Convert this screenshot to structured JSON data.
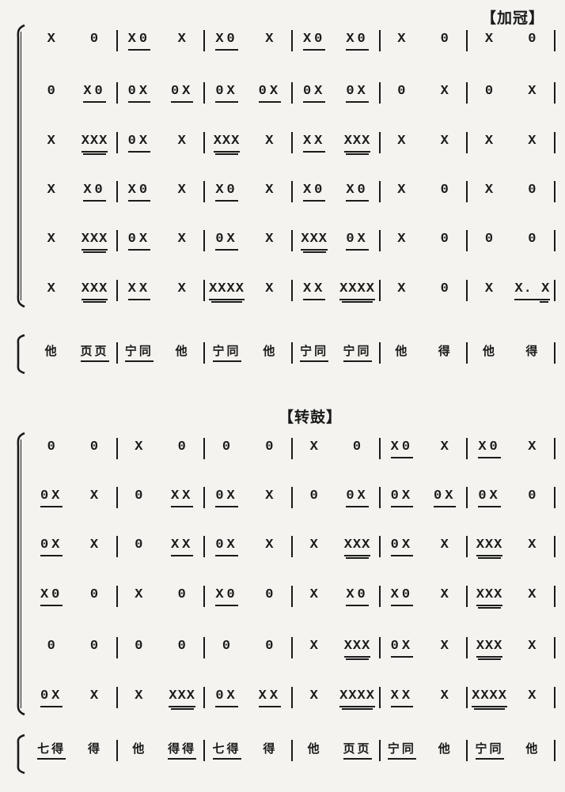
{
  "colors": {
    "ink": "#1a1a1a",
    "background": "#f4f3ef"
  },
  "notation_type": "luogu-jing percussion score (X = strike, 0 = rest; underlines = subdivisions)",
  "systems": [
    {
      "header": {
        "label": "【加冠】"
      },
      "rows": [
        [
          [
            {
              "t": "X",
              "u": 0
            },
            {
              "t": "0",
              "u": 0
            }
          ],
          [
            {
              "t": "X0",
              "u": 1
            },
            {
              "t": "X",
              "u": 0
            }
          ],
          [
            {
              "t": "X0",
              "u": 1
            },
            {
              "t": "X",
              "u": 0
            }
          ],
          [
            {
              "t": "X0",
              "u": 1
            },
            {
              "t": "X0",
              "u": 1
            }
          ],
          [
            {
              "t": "X",
              "u": 0
            },
            {
              "t": "0",
              "u": 0
            }
          ],
          [
            {
              "t": "X",
              "u": 0
            },
            {
              "t": "0",
              "u": 0
            }
          ]
        ],
        [
          [
            {
              "t": "0",
              "u": 0
            },
            {
              "t": "X0",
              "u": 1
            }
          ],
          [
            {
              "t": "0X",
              "u": 1
            },
            {
              "t": "0X",
              "u": 1
            }
          ],
          [
            {
              "t": "0X",
              "u": 1
            },
            {
              "t": "0X",
              "u": 1
            }
          ],
          [
            {
              "t": "0X",
              "u": 1
            },
            {
              "t": "0X",
              "u": 1
            }
          ],
          [
            {
              "t": "0",
              "u": 0
            },
            {
              "t": "X",
              "u": 0
            }
          ],
          [
            {
              "t": "0",
              "u": 0
            },
            {
              "t": "X",
              "u": 0
            }
          ]
        ],
        [
          [
            {
              "t": "X",
              "u": 0
            },
            {
              "t": "XXX",
              "u": 2
            }
          ],
          [
            {
              "t": "0X",
              "u": 1
            },
            {
              "t": "X",
              "u": 0
            }
          ],
          [
            {
              "t": "XXX",
              "u": 2
            },
            {
              "t": "X",
              "u": 0
            }
          ],
          [
            {
              "t": "XX",
              "u": 1
            },
            {
              "t": "XXX",
              "u": 2
            }
          ],
          [
            {
              "t": "X",
              "u": 0
            },
            {
              "t": "X",
              "u": 0
            }
          ],
          [
            {
              "t": "X",
              "u": 0
            },
            {
              "t": "X",
              "u": 0
            }
          ]
        ],
        [
          [
            {
              "t": "X",
              "u": 0
            },
            {
              "t": "X0",
              "u": 1
            }
          ],
          [
            {
              "t": "X0",
              "u": 1
            },
            {
              "t": "X",
              "u": 0
            }
          ],
          [
            {
              "t": "X0",
              "u": 1
            },
            {
              "t": "X",
              "u": 0
            }
          ],
          [
            {
              "t": "X0",
              "u": 1
            },
            {
              "t": "X0",
              "u": 1
            }
          ],
          [
            {
              "t": "X",
              "u": 0
            },
            {
              "t": "0",
              "u": 0
            }
          ],
          [
            {
              "t": "X",
              "u": 0
            },
            {
              "t": "0",
              "u": 0
            }
          ]
        ],
        [
          [
            {
              "t": "X",
              "u": 0
            },
            {
              "t": "XXX",
              "u": 2
            }
          ],
          [
            {
              "t": "0X",
              "u": 1
            },
            {
              "t": "X",
              "u": 0
            }
          ],
          [
            {
              "t": "0X",
              "u": 1
            },
            {
              "t": "X",
              "u": 0
            }
          ],
          [
            {
              "t": "XXX",
              "u": 2
            },
            {
              "t": "0X",
              "u": 1
            }
          ],
          [
            {
              "t": "X",
              "u": 0
            },
            {
              "t": "0",
              "u": 0
            }
          ],
          [
            {
              "t": "0",
              "u": 0
            },
            {
              "t": "0",
              "u": 0
            }
          ]
        ],
        [
          [
            {
              "t": "X",
              "u": 0
            },
            {
              "t": "XXX",
              "u": 2
            }
          ],
          [
            {
              "t": "XX",
              "u": 1
            },
            {
              "t": "X",
              "u": 0
            }
          ],
          [
            {
              "t": "XXXX",
              "u": 2
            },
            {
              "t": "X",
              "u": 0
            }
          ],
          [
            {
              "t": "XX",
              "u": 1
            },
            {
              "t": "XXXX",
              "u": 2
            }
          ],
          [
            {
              "t": "X",
              "u": 0
            },
            {
              "t": "0",
              "u": 0
            }
          ],
          [
            {
              "t": "X",
              "u": 0
            },
            {
              "t": "X. X",
              "u": 1,
              "d": true
            }
          ]
        ]
      ],
      "lyrics": [
        [
          {
            "t": "他",
            "u": 0
          },
          {
            "t": "页页",
            "u": 1
          }
        ],
        [
          {
            "t": "宁同",
            "u": 1
          },
          {
            "t": "他",
            "u": 0
          }
        ],
        [
          {
            "t": "宁同",
            "u": 1
          },
          {
            "t": "他",
            "u": 0
          }
        ],
        [
          {
            "t": "宁同",
            "u": 1
          },
          {
            "t": "宁同",
            "u": 1
          }
        ],
        [
          {
            "t": "他",
            "u": 0
          },
          {
            "t": "得",
            "u": 0
          }
        ],
        [
          {
            "t": "他",
            "u": 0
          },
          {
            "t": "得",
            "u": 0
          }
        ]
      ]
    },
    {
      "header": {
        "label": "【转鼓】"
      },
      "rows": [
        [
          [
            {
              "t": "0",
              "u": 0
            },
            {
              "t": "0",
              "u": 0
            }
          ],
          [
            {
              "t": "X",
              "u": 0
            },
            {
              "t": "0",
              "u": 0
            }
          ],
          [
            {
              "t": "0",
              "u": 0
            },
            {
              "t": "0",
              "u": 0
            }
          ],
          [
            {
              "t": "X",
              "u": 0
            },
            {
              "t": "0",
              "u": 0
            }
          ],
          [
            {
              "t": "X0",
              "u": 1
            },
            {
              "t": "X",
              "u": 0
            }
          ],
          [
            {
              "t": "X0",
              "u": 1
            },
            {
              "t": "X",
              "u": 0
            }
          ]
        ],
        [
          [
            {
              "t": "0X",
              "u": 1
            },
            {
              "t": "X",
              "u": 0
            }
          ],
          [
            {
              "t": "0",
              "u": 0
            },
            {
              "t": "XX",
              "u": 1
            }
          ],
          [
            {
              "t": "0X",
              "u": 1
            },
            {
              "t": "X",
              "u": 0
            }
          ],
          [
            {
              "t": "0",
              "u": 0
            },
            {
              "t": "0X",
              "u": 1
            }
          ],
          [
            {
              "t": "0X",
              "u": 1
            },
            {
              "t": "0X",
              "u": 1
            }
          ],
          [
            {
              "t": "0X",
              "u": 1
            },
            {
              "t": "0",
              "u": 0
            }
          ]
        ],
        [
          [
            {
              "t": "0X",
              "u": 1
            },
            {
              "t": "X",
              "u": 0
            }
          ],
          [
            {
              "t": "0",
              "u": 0
            },
            {
              "t": "XX",
              "u": 1
            }
          ],
          [
            {
              "t": "0X",
              "u": 1
            },
            {
              "t": "X",
              "u": 0
            }
          ],
          [
            {
              "t": "X",
              "u": 0
            },
            {
              "t": "XXX",
              "u": 2
            }
          ],
          [
            {
              "t": "0X",
              "u": 1
            },
            {
              "t": "X",
              "u": 0
            }
          ],
          [
            {
              "t": "XXX",
              "u": 2
            },
            {
              "t": "X",
              "u": 0
            }
          ]
        ],
        [
          [
            {
              "t": "X0",
              "u": 1
            },
            {
              "t": "0",
              "u": 0
            }
          ],
          [
            {
              "t": "X",
              "u": 0
            },
            {
              "t": "0",
              "u": 0
            }
          ],
          [
            {
              "t": "X0",
              "u": 1
            },
            {
              "t": "0",
              "u": 0
            }
          ],
          [
            {
              "t": "X",
              "u": 0
            },
            {
              "t": "X0",
              "u": 1
            }
          ],
          [
            {
              "t": "X0",
              "u": 1
            },
            {
              "t": "X",
              "u": 0
            }
          ],
          [
            {
              "t": "XXX",
              "u": 2
            },
            {
              "t": "X",
              "u": 0
            }
          ]
        ],
        [
          [
            {
              "t": "0",
              "u": 0
            },
            {
              "t": "0",
              "u": 0
            }
          ],
          [
            {
              "t": "0",
              "u": 0
            },
            {
              "t": "0",
              "u": 0
            }
          ],
          [
            {
              "t": "0",
              "u": 0
            },
            {
              "t": "0",
              "u": 0
            }
          ],
          [
            {
              "t": "X",
              "u": 0
            },
            {
              "t": "XXX",
              "u": 2
            }
          ],
          [
            {
              "t": "0X",
              "u": 1
            },
            {
              "t": "X",
              "u": 0
            }
          ],
          [
            {
              "t": "XXX",
              "u": 2
            },
            {
              "t": "X",
              "u": 0
            }
          ]
        ],
        [
          [
            {
              "t": "0X",
              "u": 1
            },
            {
              "t": "X",
              "u": 0
            }
          ],
          [
            {
              "t": "X",
              "u": 0
            },
            {
              "t": "XXX",
              "u": 2
            }
          ],
          [
            {
              "t": "0X",
              "u": 1
            },
            {
              "t": "XX",
              "u": 1
            }
          ],
          [
            {
              "t": "X",
              "u": 0
            },
            {
              "t": "XXXX",
              "u": 2
            }
          ],
          [
            {
              "t": "XX",
              "u": 1
            },
            {
              "t": "X",
              "u": 0
            }
          ],
          [
            {
              "t": "XXXX",
              "u": 2
            },
            {
              "t": "X",
              "u": 0
            }
          ]
        ]
      ],
      "lyrics": [
        [
          {
            "t": "七得",
            "u": 1
          },
          {
            "t": "得",
            "u": 0
          }
        ],
        [
          {
            "t": "他",
            "u": 0
          },
          {
            "t": "得得",
            "u": 1
          }
        ],
        [
          {
            "t": "七得",
            "u": 1
          },
          {
            "t": "得",
            "u": 0
          }
        ],
        [
          {
            "t": "他",
            "u": 0
          },
          {
            "t": "页页",
            "u": 1
          }
        ],
        [
          {
            "t": "宁同",
            "u": 1
          },
          {
            "t": "他",
            "u": 0
          }
        ],
        [
          {
            "t": "宁同",
            "u": 1
          },
          {
            "t": "他",
            "u": 0
          }
        ]
      ]
    }
  ]
}
